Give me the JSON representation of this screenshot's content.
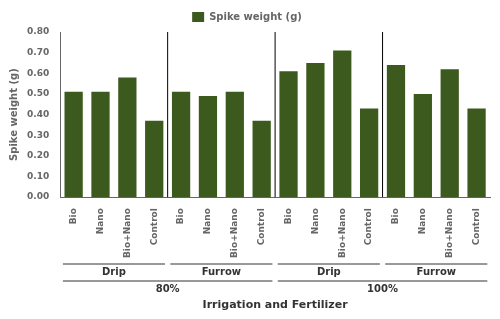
{
  "chart_data": {
    "type": "bar",
    "categories": [
      "Bio",
      "Nano",
      "Bio+Nano",
      "Control",
      "Bio",
      "Nano",
      "Bio+Nano",
      "Control",
      "Bio",
      "Nano",
      "Bio+Nano",
      "Control",
      "Bio",
      "Nano",
      "Bio+Nano",
      "Control"
    ],
    "series": [
      {
        "name": "Spike weight (g)",
        "color": "#3d5a1e",
        "values": [
          0.51,
          0.51,
          0.58,
          0.37,
          0.51,
          0.49,
          0.51,
          0.37,
          0.61,
          0.65,
          0.71,
          0.43,
          0.64,
          0.5,
          0.62,
          0.43
        ]
      }
    ],
    "ylabel": "Spike weight (g)",
    "xlabel": "Irrigation and Fertilizer",
    "ylim": [
      0.0,
      0.8
    ],
    "yticks": [
      {
        "value": 0.0,
        "label": "0.00"
      },
      {
        "value": 0.1,
        "label": "0.10"
      },
      {
        "value": 0.2,
        "label": "0.20"
      },
      {
        "value": 0.3,
        "label": "0.30"
      },
      {
        "value": 0.4,
        "label": "0.40"
      },
      {
        "value": 0.5,
        "label": "0.50"
      },
      {
        "value": 0.6,
        "label": "0.60"
      },
      {
        "value": 0.7,
        "label": "0.70"
      },
      {
        "value": 0.8,
        "label": "0.80"
      }
    ],
    "grid": false,
    "legend": "top",
    "annotations": [
      [
        "Drip",
        "Furrow",
        "Drip",
        "Furrow"
      ],
      [
        "80%",
        "100%"
      ]
    ]
  }
}
